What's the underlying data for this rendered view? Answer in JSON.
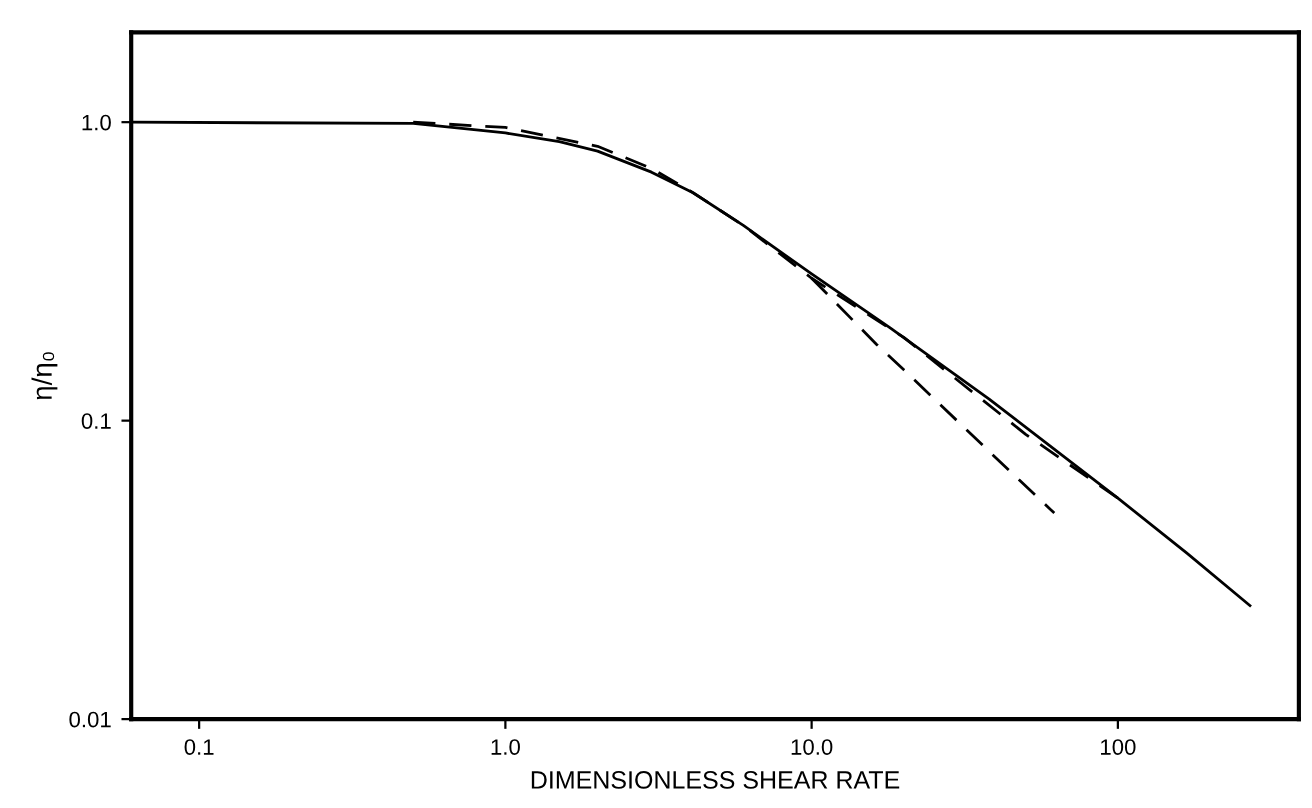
{
  "chart_data": {
    "type": "line",
    "xlabel": "DIMENSIONLESS SHEAR RATE",
    "ylabel": "η/η₀",
    "log": "xy",
    "grid": false,
    "xlim": [
      0.06,
      390
    ],
    "ylim": [
      0.01,
      2.0
    ],
    "xticks": [
      {
        "value": 0.1,
        "label": "0.1"
      },
      {
        "value": 1,
        "label": "1.0"
      },
      {
        "value": 10,
        "label": "10.0"
      },
      {
        "value": 100,
        "label": "100"
      }
    ],
    "yticks": [
      {
        "value": 0.01,
        "label": "0.01"
      },
      {
        "value": 0.1,
        "label": "0.1"
      },
      {
        "value": 1,
        "label": "1.0"
      }
    ],
    "series": [
      {
        "color": "#000000",
        "line_style": "solid",
        "x": [
          0.06,
          0.5,
          1.0,
          1.5,
          2.0,
          3.0,
          4.1,
          6.0,
          10,
          18,
          38,
          100,
          168,
          270
        ],
        "values": [
          1.0,
          0.99,
          0.92,
          0.86,
          0.8,
          0.68,
          0.58,
          0.45,
          0.31,
          0.205,
          0.118,
          0.055,
          0.036,
          0.024
        ]
      },
      {
        "color": "#000000",
        "line_style": "dashed",
        "x": [
          0.5,
          1.0,
          2.0,
          3.0,
          4.0,
          6.0,
          10,
          20,
          50,
          100
        ],
        "values": [
          1.0,
          0.96,
          0.83,
          0.7,
          0.59,
          0.45,
          0.3,
          0.19,
          0.09,
          0.055
        ]
      },
      {
        "color": "#000000",
        "line_style": "dashed",
        "x": [
          10,
          16.3,
          20,
          40,
          62
        ],
        "values": [
          0.3,
          0.18,
          0.148,
          0.075,
          0.049
        ]
      }
    ]
  }
}
